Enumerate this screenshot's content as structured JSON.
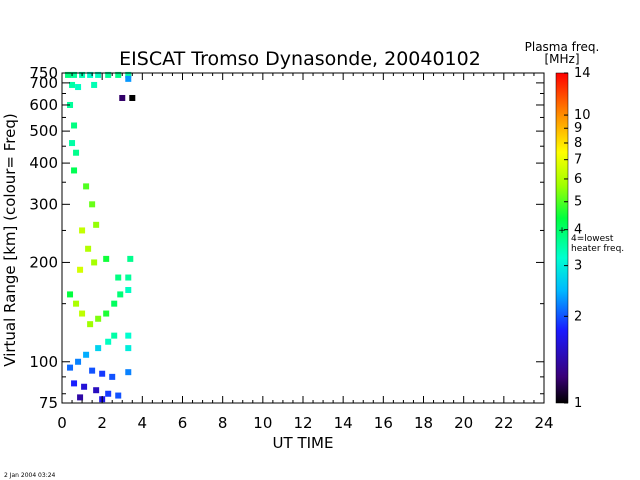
{
  "chart_data": {
    "type": "heatmap",
    "title": "EISCAT Tromso Dynasonde,  20040102",
    "xlabel": "UT TIME",
    "ylabel": "Virtual Range [km]   (colour= Freq)",
    "x_ticks": [
      "0",
      "2",
      "4",
      "6",
      "8",
      "10",
      "12",
      "14",
      "16",
      "18",
      "20",
      "22",
      "24"
    ],
    "xlim": [
      0,
      24
    ],
    "ylim": [
      75,
      750
    ],
    "y_scale": "log",
    "y_ticks": [
      "75",
      "100",
      "200",
      "300",
      "400",
      "500",
      "600",
      "700",
      "750"
    ],
    "colorbar": {
      "label_line1": "Plasma freq.",
      "label_line2": "[MHz]",
      "ticks": [
        "1",
        "2",
        "3",
        "4",
        "5",
        "6",
        "7",
        "8",
        "9",
        "10",
        "14"
      ],
      "range": [
        1,
        14
      ],
      "scale": "log",
      "marker_value": 4,
      "marker_label_line1": "4=lowest",
      "marker_label_line2": "heater freq.",
      "colors": [
        "#000000",
        "#3a0078",
        "#1a1aff",
        "#00b8ff",
        "#00ffd0",
        "#00ff40",
        "#a0ff00",
        "#ffff00",
        "#ff9000",
        "#ff0000"
      ]
    },
    "data_extent_hours": [
      0,
      3.5
    ],
    "cells": [
      {
        "t": 0.3,
        "h": 740,
        "f": 3.8
      },
      {
        "t": 0.6,
        "h": 740,
        "f": 3.6
      },
      {
        "t": 1.0,
        "h": 740,
        "f": 3.4
      },
      {
        "t": 1.4,
        "h": 740,
        "f": 3.2
      },
      {
        "t": 1.8,
        "h": 740,
        "f": 3.3
      },
      {
        "t": 2.3,
        "h": 740,
        "f": 3.6
      },
      {
        "t": 2.8,
        "h": 740,
        "f": 3.7
      },
      {
        "t": 3.3,
        "h": 740,
        "f": 3.5
      },
      {
        "t": 3.3,
        "h": 720,
        "f": 2.3
      },
      {
        "t": 0.5,
        "h": 690,
        "f": 3.5
      },
      {
        "t": 0.8,
        "h": 680,
        "f": 3.3
      },
      {
        "t": 1.6,
        "h": 690,
        "f": 3.4
      },
      {
        "t": 0.4,
        "h": 600,
        "f": 3.6
      },
      {
        "t": 0.6,
        "h": 520,
        "f": 3.8
      },
      {
        "t": 0.5,
        "h": 460,
        "f": 3.5
      },
      {
        "t": 0.7,
        "h": 430,
        "f": 3.7
      },
      {
        "t": 0.6,
        "h": 380,
        "f": 4.2
      },
      {
        "t": 1.2,
        "h": 340,
        "f": 5.0
      },
      {
        "t": 1.5,
        "h": 300,
        "f": 5.2
      },
      {
        "t": 1.7,
        "h": 260,
        "f": 5.6
      },
      {
        "t": 1.0,
        "h": 250,
        "f": 6.3
      },
      {
        "t": 1.3,
        "h": 220,
        "f": 6.0
      },
      {
        "t": 1.6,
        "h": 200,
        "f": 5.8
      },
      {
        "t": 0.9,
        "h": 190,
        "f": 6.6
      },
      {
        "t": 2.2,
        "h": 205,
        "f": 4.5
      },
      {
        "t": 3.4,
        "h": 205,
        "f": 3.7
      },
      {
        "t": 2.8,
        "h": 180,
        "f": 3.8
      },
      {
        "t": 3.3,
        "h": 180,
        "f": 3.6
      },
      {
        "t": 3.3,
        "h": 165,
        "f": 3.3
      },
      {
        "t": 2.9,
        "h": 160,
        "f": 3.9
      },
      {
        "t": 2.6,
        "h": 150,
        "f": 4.1
      },
      {
        "t": 2.2,
        "h": 140,
        "f": 4.6
      },
      {
        "t": 1.8,
        "h": 135,
        "f": 5.4
      },
      {
        "t": 1.4,
        "h": 130,
        "f": 5.7
      },
      {
        "t": 1.0,
        "h": 140,
        "f": 6.2
      },
      {
        "t": 0.7,
        "h": 150,
        "f": 5.9
      },
      {
        "t": 0.4,
        "h": 160,
        "f": 4.4
      },
      {
        "t": 2.6,
        "h": 120,
        "f": 3.5
      },
      {
        "t": 3.3,
        "h": 120,
        "f": 3.2
      },
      {
        "t": 3.3,
        "h": 110,
        "f": 3.0
      },
      {
        "t": 2.3,
        "h": 115,
        "f": 3.3
      },
      {
        "t": 1.8,
        "h": 110,
        "f": 2.7
      },
      {
        "t": 1.2,
        "h": 105,
        "f": 2.4
      },
      {
        "t": 0.8,
        "h": 100,
        "f": 2.2
      },
      {
        "t": 0.4,
        "h": 96,
        "f": 2.1
      },
      {
        "t": 1.5,
        "h": 94,
        "f": 2.0
      },
      {
        "t": 2.0,
        "h": 92,
        "f": 1.9
      },
      {
        "t": 2.5,
        "h": 90,
        "f": 2.0
      },
      {
        "t": 3.3,
        "h": 93,
        "f": 2.2
      },
      {
        "t": 0.6,
        "h": 86,
        "f": 1.8
      },
      {
        "t": 1.1,
        "h": 84,
        "f": 1.6
      },
      {
        "t": 1.7,
        "h": 82,
        "f": 1.5
      },
      {
        "t": 2.3,
        "h": 80,
        "f": 1.9
      },
      {
        "t": 2.8,
        "h": 79,
        "f": 2.0
      },
      {
        "t": 0.9,
        "h": 78,
        "f": 1.4
      },
      {
        "t": 2.0,
        "h": 77,
        "f": 1.7
      },
      {
        "t": 3.0,
        "h": 630,
        "f": 1.2
      },
      {
        "t": 3.5,
        "h": 630,
        "f": 1.0
      }
    ]
  },
  "timestamp": "2 Jan 2004 03:24"
}
